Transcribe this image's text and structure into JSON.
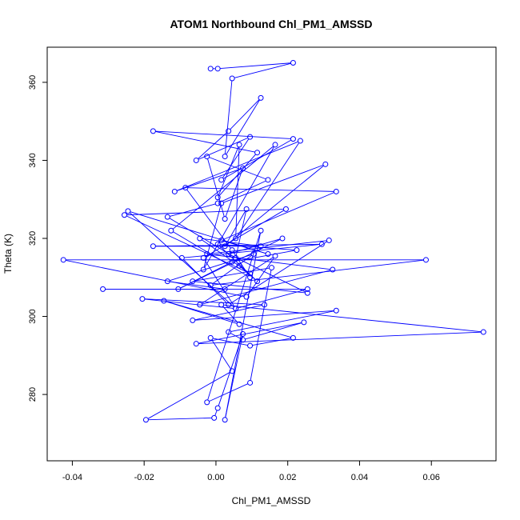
{
  "chart_data": {
    "type": "line",
    "markers": "open-circle",
    "title": "ATOM1 Northbound Chl_PM1_AMSSD",
    "xlabel": "Chl_PM1_AMSSD",
    "ylabel": "Theta (K)",
    "xlim": [
      -0.047,
      0.078
    ],
    "ylim": [
      263,
      369
    ],
    "xticks": [
      -0.04,
      -0.02,
      0.0,
      0.02,
      0.04,
      0.06
    ],
    "xtick_labels": [
      "-0.04",
      "-0.02",
      "0.00",
      "0.02",
      "0.04",
      "0.06"
    ],
    "yticks": [
      280,
      300,
      320,
      340,
      360
    ],
    "ytick_labels": [
      "280",
      "300",
      "320",
      "340",
      "360"
    ],
    "grid": false,
    "series": [
      {
        "color": "#0000ff",
        "x": [
          -0.0015,
          0.0005,
          0.0215,
          0.0045,
          0.0025,
          0.0125,
          0.0035,
          -0.0055,
          0.0095,
          0.0015,
          0.0215,
          -0.0175,
          0.0115,
          0.0005,
          0.0065,
          0.0055,
          0.0235,
          -0.0115,
          0.0075,
          0.0025,
          -0.0025,
          0.0145,
          0.0005,
          -0.0135,
          0.0055,
          0.0085,
          0.0025,
          0.0305,
          0.0015,
          -0.0035,
          0.0165,
          -0.0125,
          0.0095,
          0.0045,
          -0.0085,
          0.0335,
          0.0015,
          0.0145,
          -0.0245,
          0.0055,
          -0.0035,
          0.0195,
          -0.0255,
          0.0095,
          -0.0045,
          0.0125,
          -0.0175,
          0.0295,
          -0.0095,
          0.0035,
          0.0315,
          -0.0025,
          0.0325,
          -0.0045,
          0.0165,
          0.0085,
          -0.0425,
          0.0585,
          -0.0015,
          0.0105,
          -0.0135,
          0.0025,
          -0.0315,
          0.0255,
          0.0055,
          -0.0205,
          0.0135,
          -0.0065,
          0.0335,
          0.0035,
          0.0075,
          0.0245,
          -0.0055,
          0.0745,
          0.0015,
          0.0065,
          -0.0145,
          0.0215,
          0.0095,
          -0.0015,
          0.0045,
          -0.0195,
          -0.0005,
          0.0005,
          0.0075,
          0.0025,
          0.0125,
          -0.0025,
          0.0095,
          0.0155,
          -0.0065,
          0.0255,
          0.0035,
          0.0185,
          -0.0105,
          0.0045,
          0.0225,
          0.0005,
          0.0115,
          0.0065
        ],
        "y": [
          363.5,
          363.5,
          365,
          361,
          341,
          356,
          347.5,
          340,
          346,
          335,
          345.5,
          347.5,
          342,
          330.5,
          344,
          320,
          345,
          332,
          338,
          325,
          341,
          335,
          329,
          325.5,
          315,
          327.5,
          318,
          339,
          329,
          312,
          344,
          322,
          310,
          317,
          333,
          332,
          319.5,
          316,
          327,
          302,
          315,
          327.5,
          326,
          311,
          320,
          318,
          318,
          318.5,
          315,
          303,
          319.5,
          316,
          312,
          303,
          315.5,
          305,
          314.5,
          314.5,
          308,
          316,
          309,
          307,
          307,
          307,
          302,
          304.5,
          303,
          299,
          301.5,
          296,
          294,
          298.5,
          293,
          296,
          303,
          298,
          304,
          294.5,
          292.5,
          294.5,
          286,
          273.5,
          274,
          276.5,
          295.5,
          273.5,
          322,
          278,
          283,
          312.5,
          309,
          306,
          316,
          320,
          307,
          314,
          317,
          318.5,
          309,
          313
        ]
      }
    ]
  }
}
